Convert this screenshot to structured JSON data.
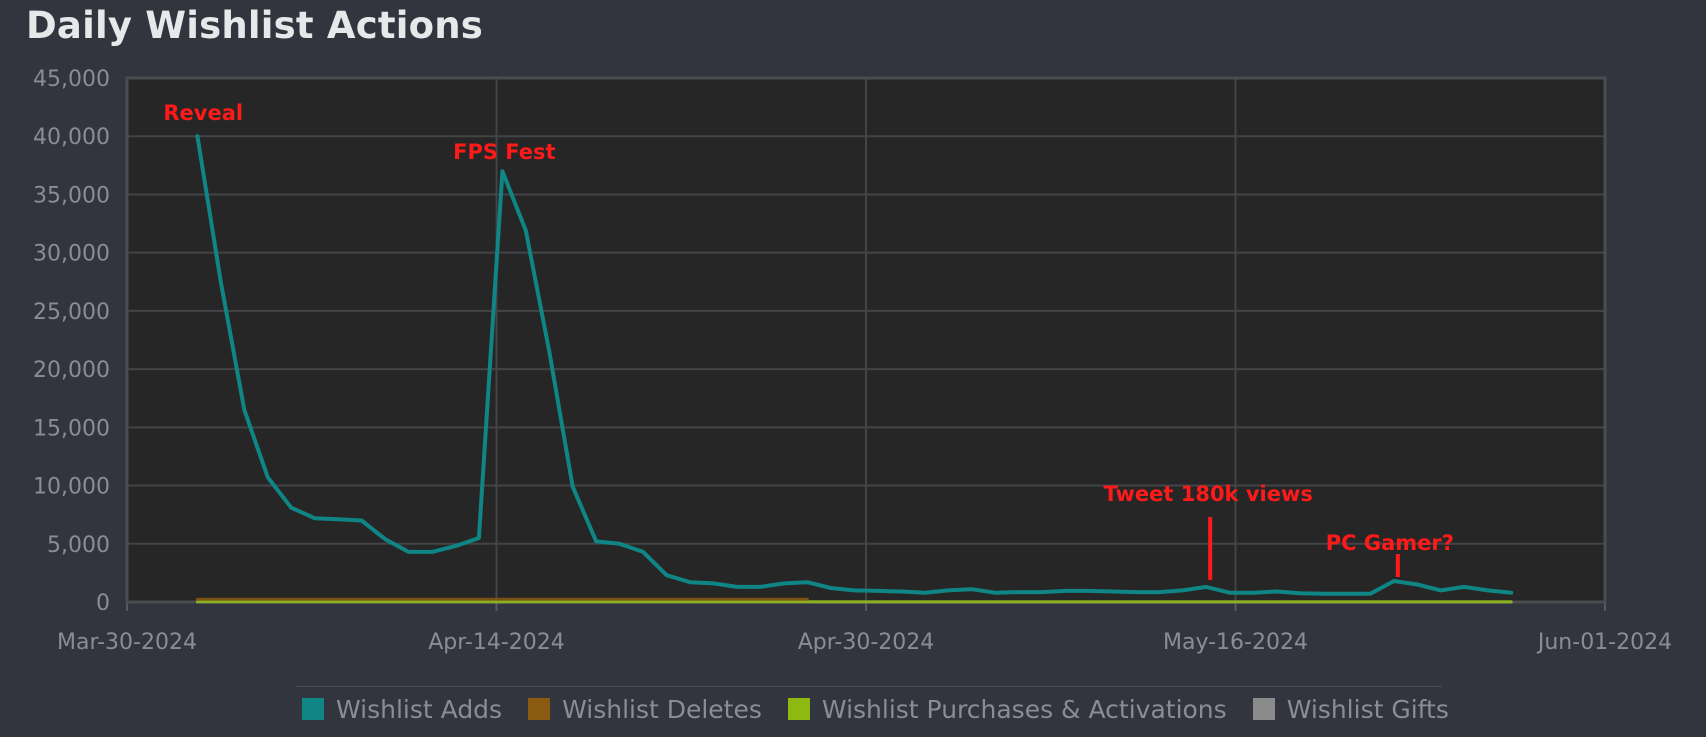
{
  "chart_data": {
    "type": "line",
    "title": "Daily Wishlist Actions",
    "xlabel": "",
    "ylabel": "",
    "x_start": "2024-03-30",
    "x_end": "2024-06-01",
    "x_ticks": [
      "Mar-30-2024",
      "Apr-14-2024",
      "Apr-30-2024",
      "May-16-2024",
      "Jun-01-2024"
    ],
    "y_ticks": [
      "0",
      "5,000",
      "10,000",
      "15,000",
      "20,000",
      "25,000",
      "30,000",
      "35,000",
      "40,000",
      "45,000"
    ],
    "ylim": [
      0,
      45000
    ],
    "grid": true,
    "legend_position": "bottom",
    "series": [
      {
        "name": "Wishlist Adds",
        "color": "#0f8585",
        "x": [
          "2024-04-02",
          "2024-04-03",
          "2024-04-04",
          "2024-04-05",
          "2024-04-06",
          "2024-04-07",
          "2024-04-08",
          "2024-04-09",
          "2024-04-10",
          "2024-04-11",
          "2024-04-12",
          "2024-04-13",
          "2024-04-14",
          "2024-04-15",
          "2024-04-16",
          "2024-04-17",
          "2024-04-18",
          "2024-04-19",
          "2024-04-20",
          "2024-04-21",
          "2024-04-22",
          "2024-04-23",
          "2024-04-24",
          "2024-04-25",
          "2024-04-26",
          "2024-04-27",
          "2024-04-28",
          "2024-04-29",
          "2024-04-30",
          "2024-05-01",
          "2024-05-02",
          "2024-05-03",
          "2024-05-04",
          "2024-05-05",
          "2024-05-06",
          "2024-05-07",
          "2024-05-08",
          "2024-05-09",
          "2024-05-10",
          "2024-05-11",
          "2024-05-12",
          "2024-05-13",
          "2024-05-14",
          "2024-05-15",
          "2024-05-16",
          "2024-05-17",
          "2024-05-18",
          "2024-05-19",
          "2024-05-20",
          "2024-05-21",
          "2024-05-22",
          "2024-05-23",
          "2024-05-24",
          "2024-05-25",
          "2024-05-26",
          "2024-05-27",
          "2024-05-28"
        ],
        "values": [
          40000,
          27500,
          16500,
          10700,
          8100,
          7200,
          7100,
          7000,
          5400,
          4300,
          4300,
          4800,
          5500,
          37000,
          31900,
          21500,
          9900,
          5200,
          5000,
          4300,
          2300,
          1700,
          1600,
          1300,
          1300,
          1600,
          1700,
          1200,
          1000,
          950,
          900,
          800,
          1000,
          1100,
          800,
          850,
          850,
          950,
          950,
          900,
          850,
          850,
          1000,
          1300,
          800,
          800,
          900,
          750,
          700,
          700,
          700,
          1800,
          1500,
          1000,
          1300,
          1000,
          800
        ]
      },
      {
        "name": "Wishlist Deletes",
        "color": "#8a5a10",
        "x": [
          "2024-04-02",
          "2024-04-28"
        ],
        "values": [
          230,
          230
        ]
      },
      {
        "name": "Wishlist Purchases & Activations",
        "color": "#8db910",
        "x": [
          "2024-04-02",
          "2024-05-28"
        ],
        "values": [
          20,
          20
        ]
      },
      {
        "name": "Wishlist Gifts",
        "color": "#8b8b8b",
        "x": [
          "2024-04-02",
          "2024-05-28"
        ],
        "values": [
          0,
          0
        ]
      }
    ],
    "annotations": [
      {
        "text": "Reveal",
        "x": "2024-04-02",
        "y": 40000,
        "color": "#ff1a1a"
      },
      {
        "text": "FPS Fest",
        "x": "2024-04-15",
        "y": 37000,
        "color": "#ff1a1a"
      },
      {
        "text": "Tweet 180k views",
        "x": "2024-05-15",
        "y": 1300,
        "color": "#ff1a1a"
      },
      {
        "text": "PC Gamer?",
        "x": "2024-05-23",
        "y": 1800,
        "color": "#ff1a1a"
      }
    ]
  },
  "legend": {
    "items": [
      {
        "label": "Wishlist Adds",
        "color": "#0f8585"
      },
      {
        "label": "Wishlist Deletes",
        "color": "#8a5a10"
      },
      {
        "label": "Wishlist Purchases & Activations",
        "color": "#8db910"
      },
      {
        "label": "Wishlist Gifts",
        "color": "#8b8b8b"
      }
    ]
  }
}
